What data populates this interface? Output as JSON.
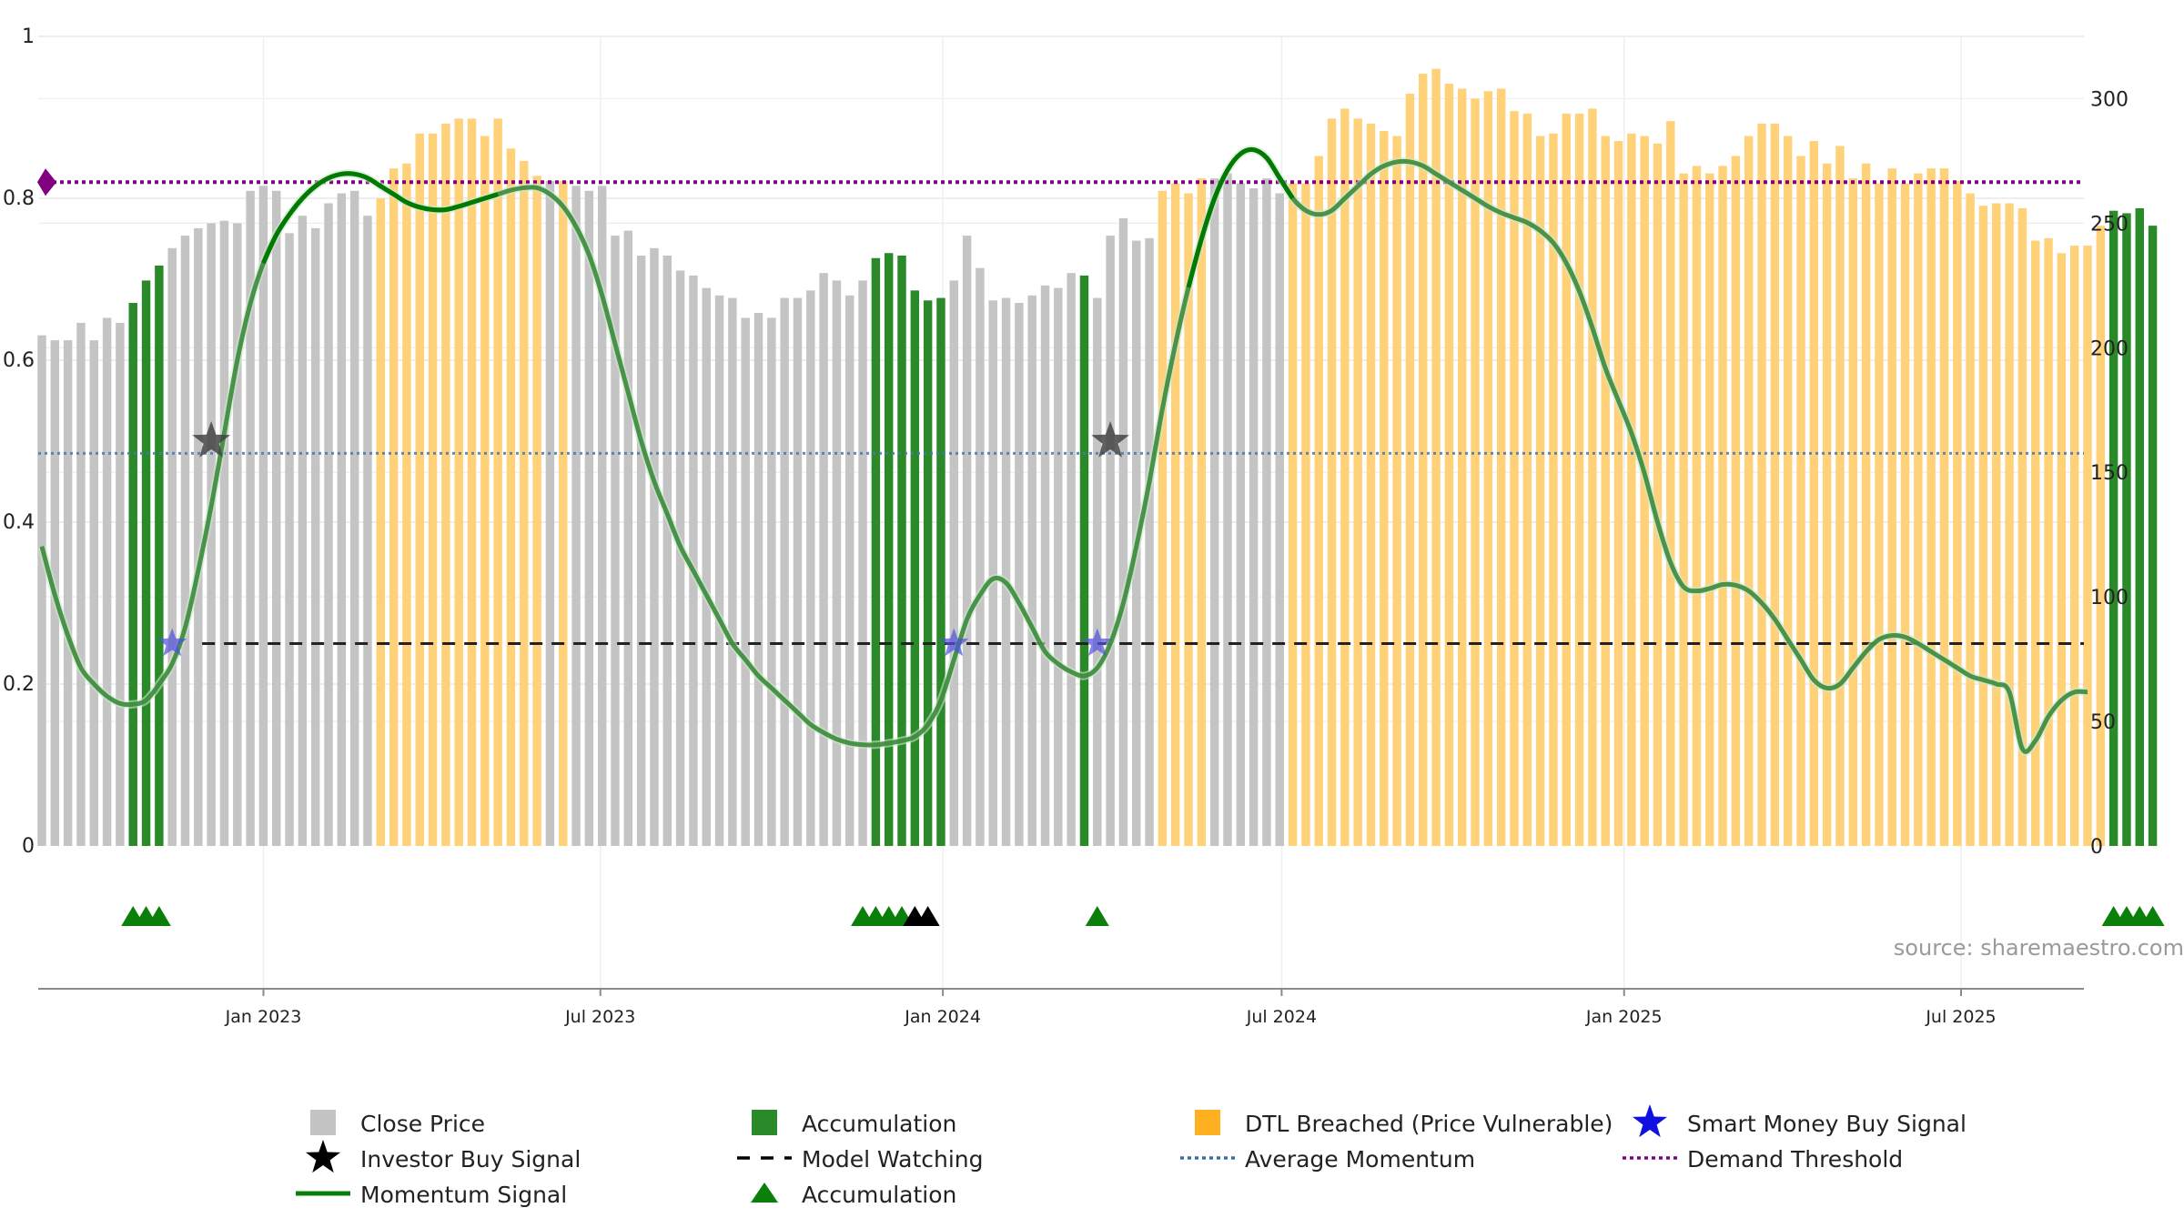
{
  "chart_data": {
    "type": "bar",
    "title": "",
    "source": "source: sharemaestro.com",
    "colors": {
      "close_price": "#c4c4c4",
      "accumulation": "#2a8a2a",
      "dtl_breached": "#ffd27a",
      "momentum": "#3a8a3a",
      "momentum_strong": "#007a00",
      "model_watching": "#222222",
      "average_momentum": "#4a7aa8",
      "demand_threshold": "#800080",
      "smart_money": "#5050e0",
      "investor_star": "#444444",
      "acc_marker": "#0a800a",
      "black_marker": "#000000"
    },
    "left_axis": {
      "min": 0,
      "max": 1,
      "ticks": [
        0,
        0.2,
        0.4,
        0.6,
        0.8,
        1
      ],
      "tick_labels": [
        "0",
        "0.2",
        "0.4",
        "0.6",
        "0.8",
        "1"
      ]
    },
    "right_axis": {
      "min": 0,
      "max": 325,
      "ticks": [
        0,
        50,
        100,
        150,
        200,
        250,
        300
      ],
      "tick_labels": [
        "0",
        "50",
        "100",
        "150",
        "200",
        "250",
        "300"
      ]
    },
    "x_axis": {
      "start": "2022-09-02",
      "end": "2025-09-05",
      "ticks": [
        {
          "date": "2023-01-01",
          "label": "Jan 2023"
        },
        {
          "date": "2023-07-01",
          "label": "Jul 2023"
        },
        {
          "date": "2024-01-01",
          "label": "Jan 2024"
        },
        {
          "date": "2024-07-01",
          "label": "Jul 2024"
        },
        {
          "date": "2025-01-01",
          "label": "Jan 2025"
        },
        {
          "date": "2025-07-01",
          "label": "Jul 2025"
        }
      ]
    },
    "price_series": {
      "name": "Close Price",
      "start_date": "2022-09-02",
      "interval_days": 7,
      "values": [
        205,
        203,
        203,
        210,
        203,
        212,
        210,
        218,
        227,
        233,
        240,
        245,
        248,
        250,
        251,
        250,
        263,
        265,
        263,
        246,
        253,
        248,
        258,
        262,
        263,
        253,
        260,
        272,
        274,
        286,
        286,
        290,
        292,
        292,
        285,
        292,
        280,
        275,
        269,
        267,
        267,
        265,
        263,
        265,
        245,
        247,
        237,
        240,
        237,
        231,
        229,
        224,
        221,
        220,
        212,
        214,
        212,
        220,
        220,
        223,
        230,
        227,
        221,
        227,
        236,
        238,
        237,
        223,
        219,
        220,
        227,
        245,
        232,
        219,
        220,
        218,
        221,
        225,
        224,
        230,
        229,
        220,
        245,
        252,
        243,
        244,
        263,
        266,
        262,
        268,
        268,
        270,
        266,
        264,
        268,
        262,
        266,
        266,
        277,
        292,
        296,
        292,
        290,
        287,
        285,
        302,
        310,
        312,
        306,
        304,
        300,
        303,
        304,
        295,
        294,
        285,
        286,
        294,
        294,
        296,
        285,
        283,
        286,
        285,
        282,
        291,
        270,
        273,
        270,
        273,
        277,
        285,
        290,
        290,
        285,
        277,
        283,
        274,
        281,
        268,
        274,
        266,
        272,
        266,
        270,
        272,
        272,
        267,
        262,
        257,
        258,
        258,
        256,
        243,
        244,
        238,
        241,
        241,
        249,
        255,
        254,
        256,
        249
      ]
    },
    "bar_categories": {
      "accumulation": [
        [
          7,
          9
        ],
        [
          64,
          69
        ],
        [
          80,
          80
        ],
        [
          159,
          162
        ]
      ],
      "dtl_breached": [
        [
          26,
          38
        ],
        [
          40,
          40
        ],
        [
          86,
          89
        ],
        [
          96,
          158
        ]
      ]
    },
    "momentum_series": {
      "name": "Momentum Signal",
      "points": [
        [
          0,
          0.37
        ],
        [
          1,
          0.31
        ],
        [
          2,
          0.26
        ],
        [
          3,
          0.22
        ],
        [
          4,
          0.2
        ],
        [
          5,
          0.185
        ],
        [
          6,
          0.176
        ],
        [
          7,
          0.175
        ],
        [
          8,
          0.18
        ],
        [
          9,
          0.2
        ],
        [
          10,
          0.225
        ],
        [
          11,
          0.27
        ],
        [
          12,
          0.34
        ],
        [
          13,
          0.42
        ],
        [
          14,
          0.51
        ],
        [
          15,
          0.6
        ],
        [
          16,
          0.67
        ],
        [
          17,
          0.72
        ],
        [
          18,
          0.755
        ],
        [
          19,
          0.78
        ],
        [
          20,
          0.8
        ],
        [
          21,
          0.815
        ],
        [
          22,
          0.825
        ],
        [
          23,
          0.83
        ],
        [
          24,
          0.83
        ],
        [
          25,
          0.825
        ],
        [
          26,
          0.815
        ],
        [
          27,
          0.805
        ],
        [
          28,
          0.795
        ],
        [
          29,
          0.789
        ],
        [
          30,
          0.786
        ],
        [
          31,
          0.786
        ],
        [
          32,
          0.79
        ],
        [
          33,
          0.795
        ],
        [
          34,
          0.8
        ],
        [
          35,
          0.805
        ],
        [
          36,
          0.81
        ],
        [
          37,
          0.813
        ],
        [
          38,
          0.813
        ],
        [
          39,
          0.805
        ],
        [
          40,
          0.79
        ],
        [
          41,
          0.765
        ],
        [
          42,
          0.73
        ],
        [
          43,
          0.68
        ],
        [
          44,
          0.62
        ],
        [
          45,
          0.56
        ],
        [
          46,
          0.5
        ],
        [
          47,
          0.45
        ],
        [
          48,
          0.41
        ],
        [
          49,
          0.37
        ],
        [
          50,
          0.34
        ],
        [
          51,
          0.31
        ],
        [
          52,
          0.28
        ],
        [
          53,
          0.25
        ],
        [
          54,
          0.23
        ],
        [
          55,
          0.21
        ],
        [
          56,
          0.195
        ],
        [
          57,
          0.18
        ],
        [
          58,
          0.165
        ],
        [
          59,
          0.15
        ],
        [
          60,
          0.14
        ],
        [
          61,
          0.132
        ],
        [
          62,
          0.127
        ],
        [
          63,
          0.125
        ],
        [
          64,
          0.125
        ],
        [
          65,
          0.127
        ],
        [
          66,
          0.13
        ],
        [
          67,
          0.135
        ],
        [
          68,
          0.15
        ],
        [
          69,
          0.18
        ],
        [
          70,
          0.23
        ],
        [
          71,
          0.28
        ],
        [
          72,
          0.31
        ],
        [
          73,
          0.33
        ],
        [
          74,
          0.325
        ],
        [
          75,
          0.3
        ],
        [
          76,
          0.27
        ],
        [
          77,
          0.24
        ],
        [
          78,
          0.225
        ],
        [
          79,
          0.215
        ],
        [
          80,
          0.21
        ],
        [
          81,
          0.22
        ],
        [
          82,
          0.25
        ],
        [
          83,
          0.3
        ],
        [
          84,
          0.37
        ],
        [
          85,
          0.45
        ],
        [
          86,
          0.54
        ],
        [
          87,
          0.62
        ],
        [
          88,
          0.69
        ],
        [
          89,
          0.75
        ],
        [
          90,
          0.8
        ],
        [
          91,
          0.835
        ],
        [
          92,
          0.855
        ],
        [
          93,
          0.86
        ],
        [
          94,
          0.85
        ],
        [
          95,
          0.825
        ],
        [
          96,
          0.8
        ],
        [
          97,
          0.785
        ],
        [
          98,
          0.78
        ],
        [
          99,
          0.785
        ],
        [
          100,
          0.8
        ],
        [
          101,
          0.815
        ],
        [
          102,
          0.83
        ],
        [
          103,
          0.84
        ],
        [
          104,
          0.845
        ],
        [
          105,
          0.845
        ],
        [
          106,
          0.84
        ],
        [
          107,
          0.83
        ],
        [
          108,
          0.82
        ],
        [
          109,
          0.81
        ],
        [
          110,
          0.8
        ],
        [
          111,
          0.79
        ],
        [
          112,
          0.782
        ],
        [
          113,
          0.776
        ],
        [
          114,
          0.77
        ],
        [
          115,
          0.76
        ],
        [
          116,
          0.745
        ],
        [
          117,
          0.72
        ],
        [
          118,
          0.685
        ],
        [
          119,
          0.64
        ],
        [
          120,
          0.59
        ],
        [
          121,
          0.55
        ],
        [
          122,
          0.51
        ],
        [
          123,
          0.46
        ],
        [
          124,
          0.4
        ],
        [
          125,
          0.35
        ],
        [
          126,
          0.32
        ],
        [
          127,
          0.315
        ],
        [
          128,
          0.318
        ],
        [
          129,
          0.323
        ],
        [
          130,
          0.322
        ],
        [
          131,
          0.315
        ],
        [
          132,
          0.3
        ],
        [
          133,
          0.28
        ],
        [
          134,
          0.255
        ],
        [
          135,
          0.23
        ],
        [
          136,
          0.205
        ],
        [
          137,
          0.195
        ],
        [
          138,
          0.2
        ],
        [
          139,
          0.22
        ],
        [
          140,
          0.24
        ],
        [
          141,
          0.255
        ],
        [
          142,
          0.26
        ],
        [
          143,
          0.258
        ],
        [
          144,
          0.25
        ],
        [
          145,
          0.24
        ],
        [
          146,
          0.23
        ],
        [
          147,
          0.22
        ],
        [
          148,
          0.21
        ],
        [
          149,
          0.205
        ],
        [
          150,
          0.2
        ],
        [
          151,
          0.19
        ],
        [
          152,
          0.12
        ],
        [
          153,
          0.13
        ],
        [
          154,
          0.16
        ],
        [
          155,
          0.18
        ],
        [
          156,
          0.19
        ],
        [
          157,
          0.19
        ]
      ],
      "strong_ranges": [
        [
          17,
          35
        ],
        [
          88,
          96
        ]
      ]
    },
    "average_momentum": {
      "name": "Average Momentum",
      "value": 0.485
    },
    "demand_threshold": {
      "name": "Demand Threshold",
      "value": 0.82
    },
    "model_watching": {
      "name": "Model Watching",
      "value": 0.25,
      "start_index": 13
    },
    "investor_buy_signals": [
      {
        "index": 13,
        "value": 0.5
      },
      {
        "index": 82,
        "value": 0.5
      }
    ],
    "smart_money_signals": [
      {
        "index": 10,
        "value": 0.25
      },
      {
        "index": 70,
        "value": 0.25
      },
      {
        "index": 81,
        "value": 0.25
      }
    ],
    "accumulation_markers": [
      7,
      8,
      9,
      63,
      64,
      65,
      66,
      81,
      159,
      160,
      161,
      162
    ],
    "black_markers": [
      67,
      68
    ],
    "legend": [
      [
        {
          "label": "Close Price",
          "symbol": "gray-square"
        },
        {
          "label": "Accumulation",
          "symbol": "green-square"
        },
        {
          "label": "DTL Breached (Price Vulnerable)",
          "symbol": "orange-square"
        },
        {
          "label": "Smart Money Buy Signal",
          "symbol": "blue-star"
        }
      ],
      [
        {
          "label": "Investor Buy Signal",
          "symbol": "black-star"
        },
        {
          "label": "Model Watching",
          "symbol": "dash-line"
        },
        {
          "label": "Average Momentum",
          "symbol": "blue-dot-line"
        },
        {
          "label": "Demand Threshold",
          "symbol": "purple-dot-line"
        }
      ],
      [
        {
          "label": "Momentum Signal",
          "symbol": "green-line"
        },
        {
          "label": "Accumulation",
          "symbol": "green-triangle"
        }
      ]
    ]
  }
}
